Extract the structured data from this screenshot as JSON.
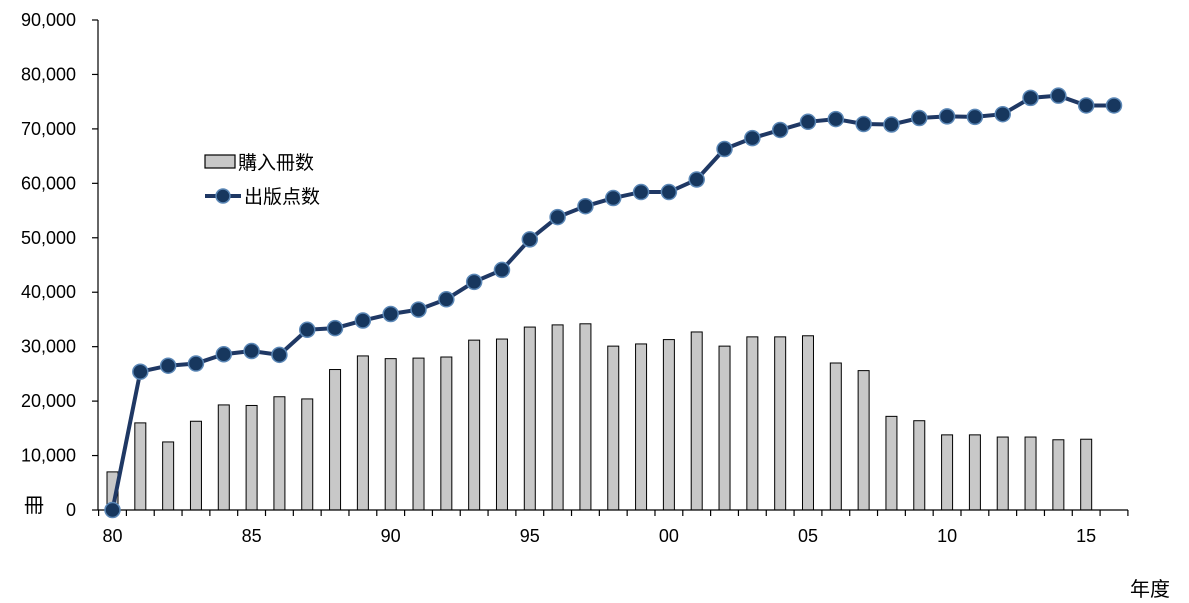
{
  "chart_data": {
    "type": "bar+line",
    "title": "",
    "xlabel": "年度",
    "ylabel_unit": "冊",
    "ylim": [
      0,
      90000
    ],
    "y_ticks": [
      "0",
      "10,000",
      "20,000",
      "30,000",
      "40,000",
      "50,000",
      "60,000",
      "70,000",
      "80,000",
      "90,000"
    ],
    "x_tick_labels": [
      {
        "year": 1980,
        "label": "80"
      },
      {
        "year": 1985,
        "label": "85"
      },
      {
        "year": 1990,
        "label": "90"
      },
      {
        "year": 1995,
        "label": "95"
      },
      {
        "year": 2000,
        "label": "00"
      },
      {
        "year": 2005,
        "label": "05"
      },
      {
        "year": 2010,
        "label": "10"
      },
      {
        "year": 2015,
        "label": "15"
      }
    ],
    "x": [
      1980,
      1981,
      1982,
      1983,
      1984,
      1985,
      1986,
      1987,
      1988,
      1989,
      1990,
      1991,
      1992,
      1993,
      1994,
      1995,
      1996,
      1997,
      1998,
      1999,
      2000,
      2001,
      2002,
      2003,
      2004,
      2005,
      2006,
      2007,
      2008,
      2009,
      2010,
      2011,
      2012,
      2013,
      2014,
      2015,
      2016
    ],
    "series": [
      {
        "name": "購入冊数",
        "type": "bar",
        "color": "#c8c8c8",
        "values": [
          7000,
          16000,
          12500,
          16300,
          19300,
          19200,
          20800,
          20400,
          25800,
          28300,
          27800,
          27900,
          28100,
          31200,
          31400,
          33600,
          34000,
          34200,
          30100,
          30500,
          31300,
          32700,
          30100,
          31800,
          31800,
          32000,
          27000,
          25600,
          17200,
          16400,
          13800,
          13800,
          13400,
          13400,
          12900,
          13000,
          null
        ]
      },
      {
        "name": "出版点数",
        "type": "line",
        "color": "#1f3864",
        "marker_color": "#17375e",
        "values": [
          0,
          25400,
          26500,
          26900,
          28600,
          29200,
          28500,
          33100,
          33400,
          34800,
          36000,
          36800,
          38700,
          41900,
          44100,
          49700,
          53800,
          55800,
          57300,
          58400,
          58400,
          60700,
          66300,
          68300,
          69800,
          71300,
          71800,
          70900,
          70800,
          72000,
          72300,
          72200,
          72700,
          75700,
          76100,
          74300,
          74300
        ]
      }
    ],
    "legend_placement": "upper-left inside",
    "grid": false
  }
}
